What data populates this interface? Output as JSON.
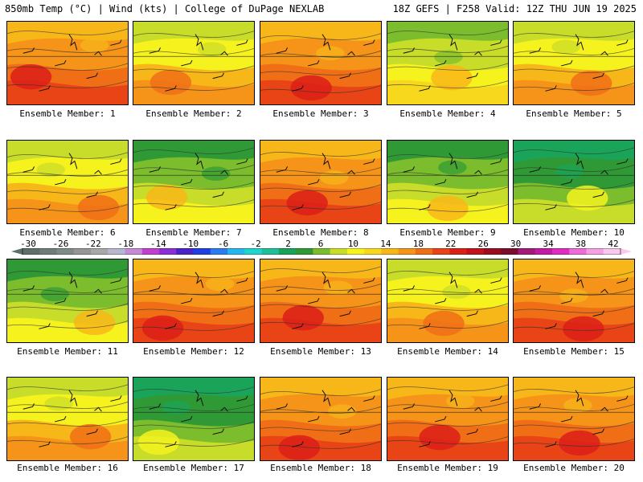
{
  "header": {
    "left": "850mb Temp (°C) | Wind (kts) | College of DuPage NEXLAB",
    "right": "18Z GEFS | F258 Valid: 12Z THU JUN 19 2025"
  },
  "colorbar": {
    "tick_labels": [
      "-30",
      "-26",
      "-22",
      "-18",
      "-14",
      "-10",
      "-6",
      "-2",
      "2",
      "6",
      "10",
      "14",
      "18",
      "22",
      "26",
      "30",
      "34",
      "38",
      "42"
    ],
    "colors": [
      "#5f6f6a",
      "#6f7d78",
      "#7f8b86",
      "#969696",
      "#a8a8a8",
      "#b7b7cf",
      "#c68bd6",
      "#c23fd0",
      "#8b2fd6",
      "#4a24c8",
      "#1f3fe0",
      "#2a7df0",
      "#24b6f0",
      "#20d4d0",
      "#1fbf9a",
      "#1aa45a",
      "#2f9a35",
      "#7bbd2c",
      "#c8dc2a",
      "#f5f21e",
      "#f7d81c",
      "#f8b719",
      "#f59418",
      "#f06e16",
      "#e84415",
      "#dc1f17",
      "#c4121a",
      "#9c0d1f",
      "#7d0b2e",
      "#a41a78",
      "#c41ba5",
      "#e02bc4",
      "#f06ad8",
      "#f6a0e4",
      "#f8c8ee"
    ]
  },
  "panels": [
    {
      "label": "Ensemble Member: 1",
      "style": "hot"
    },
    {
      "label": "Ensemble Member: 2",
      "style": "warm"
    },
    {
      "label": "Ensemble Member: 3",
      "style": "hot"
    },
    {
      "label": "Ensemble Member: 4",
      "style": "mild"
    },
    {
      "label": "Ensemble Member: 5",
      "style": "warm"
    },
    {
      "label": "Ensemble Member: 6",
      "style": "warm"
    },
    {
      "label": "Ensemble Member: 7",
      "style": "cool"
    },
    {
      "label": "Ensemble Member: 8",
      "style": "hot"
    },
    {
      "label": "Ensemble Member: 9",
      "style": "cool"
    },
    {
      "label": "Ensemble Member: 10",
      "style": "cold"
    },
    {
      "label": "Ensemble Member: 11",
      "style": "cool"
    },
    {
      "label": "Ensemble Member: 12",
      "style": "hot"
    },
    {
      "label": "Ensemble Member: 13",
      "style": "hot"
    },
    {
      "label": "Ensemble Member: 14",
      "style": "warm"
    },
    {
      "label": "Ensemble Member: 15",
      "style": "hot"
    },
    {
      "label": "Ensemble Member: 16",
      "style": "warm"
    },
    {
      "label": "Ensemble Member: 17",
      "style": "cold"
    },
    {
      "label": "Ensemble Member: 18",
      "style": "hot"
    },
    {
      "label": "Ensemble Member: 19",
      "style": "hot"
    },
    {
      "label": "Ensemble Member: 20",
      "style": "hot"
    }
  ]
}
